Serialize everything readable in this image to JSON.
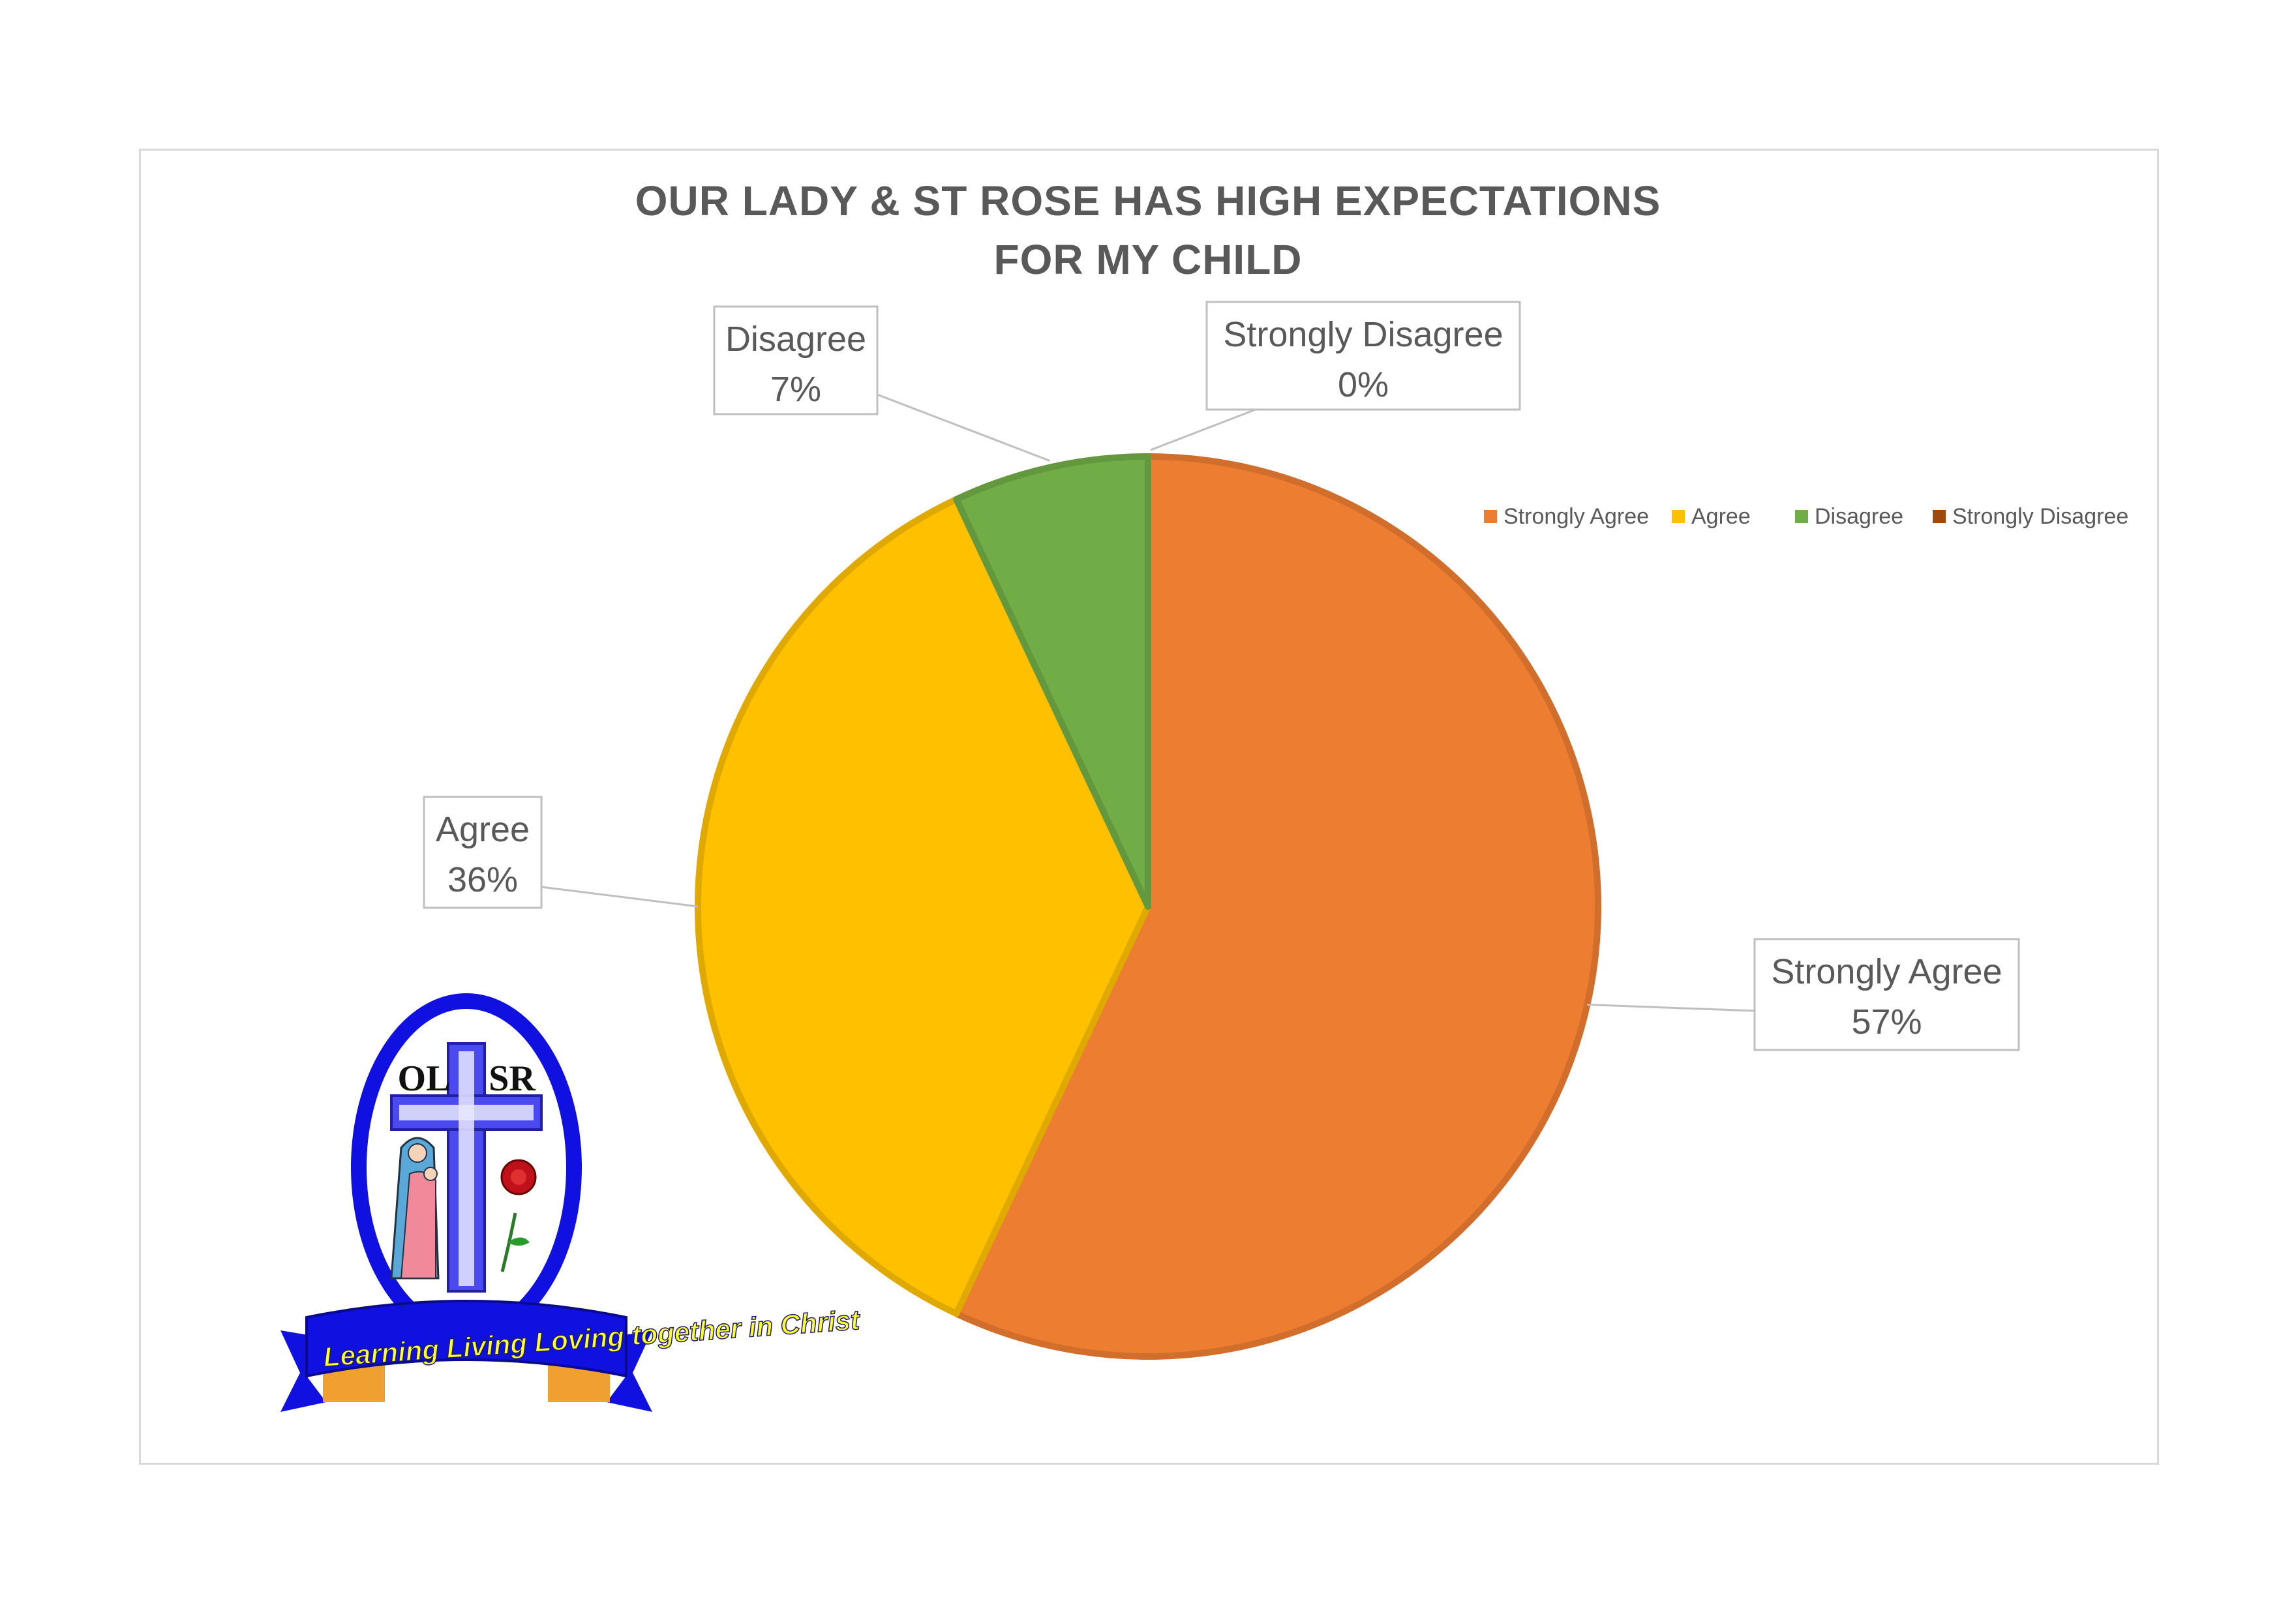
{
  "chart_data": {
    "type": "pie",
    "title": "OUR LADY & ST ROSE HAS HIGH EXPECTATIONS FOR MY CHILD",
    "title_lines": [
      "OUR LADY & ST ROSE HAS HIGH EXPECTATIONS",
      "FOR MY CHILD"
    ],
    "categories": [
      "Strongly Agree",
      "Agree",
      "Disagree",
      "Strongly Disagree"
    ],
    "values": [
      57,
      36,
      7,
      0
    ],
    "data_labels": [
      "57%",
      "36%",
      "7%",
      "0%"
    ],
    "colors": [
      "#ED7D31",
      "#FFC000",
      "#70AD47",
      "#9E480E"
    ],
    "legend_position": "top-right"
  },
  "logo": {
    "letters_left": "OL",
    "letters_right": "SR",
    "motto": "Learning Living Loving together in Christ"
  }
}
